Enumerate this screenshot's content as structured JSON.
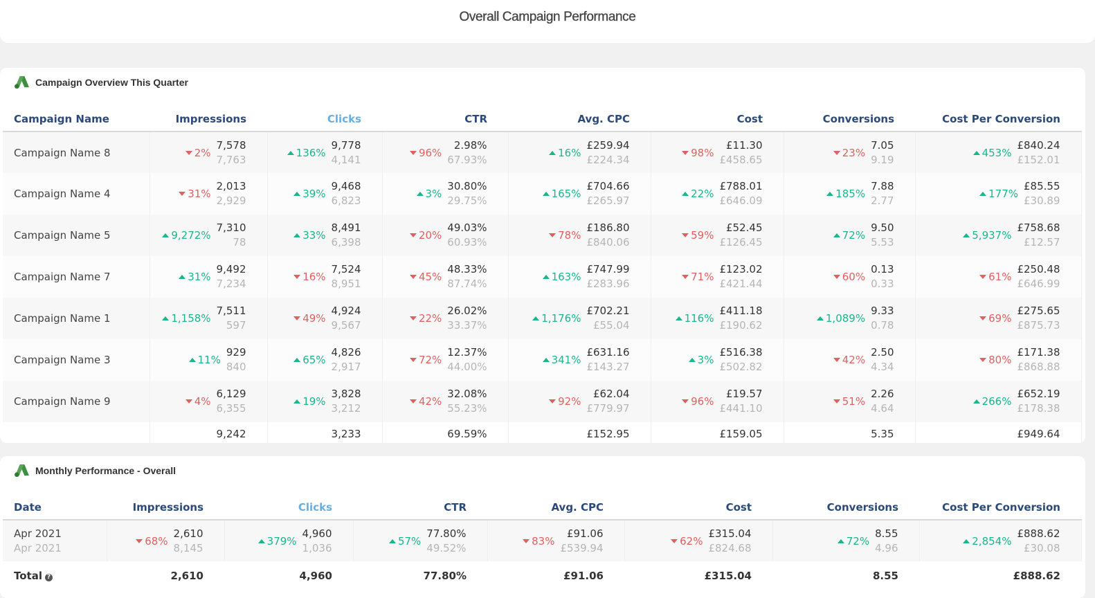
{
  "page_title": "Overall Campaign Performance",
  "card1": {
    "title": "Campaign Overview This Quarter",
    "columns": [
      "Campaign Name",
      "Impressions",
      "Clicks",
      "CTR",
      "Avg. CPC",
      "Cost",
      "Conversions",
      "Cost Per Conversion"
    ],
    "rows": [
      {
        "name": "Campaign Name 8",
        "cells": [
          {
            "d": "2%",
            "dir": "down",
            "cur": "7,578",
            "prev": "7,763"
          },
          {
            "d": "136%",
            "dir": "up",
            "cur": "9,778",
            "prev": "4,141"
          },
          {
            "d": "96%",
            "dir": "down",
            "cur": "2.98%",
            "prev": "67.93%"
          },
          {
            "d": "16%",
            "dir": "up",
            "cur": "£259.94",
            "prev": "£224.34"
          },
          {
            "d": "98%",
            "dir": "down",
            "cur": "£11.30",
            "prev": "£458.65"
          },
          {
            "d": "23%",
            "dir": "down",
            "cur": "7.05",
            "prev": "9.19"
          },
          {
            "d": "453%",
            "dir": "up",
            "cur": "£840.24",
            "prev": "£152.01"
          }
        ]
      },
      {
        "name": "Campaign Name 4",
        "cells": [
          {
            "d": "31%",
            "dir": "down",
            "cur": "2,013",
            "prev": "2,929"
          },
          {
            "d": "39%",
            "dir": "up",
            "cur": "9,468",
            "prev": "6,823"
          },
          {
            "d": "3%",
            "dir": "up",
            "cur": "30.80%",
            "prev": "29.75%"
          },
          {
            "d": "165%",
            "dir": "up",
            "cur": "£704.66",
            "prev": "£265.97"
          },
          {
            "d": "22%",
            "dir": "up",
            "cur": "£788.01",
            "prev": "£646.09"
          },
          {
            "d": "185%",
            "dir": "up",
            "cur": "7.88",
            "prev": "2.77"
          },
          {
            "d": "177%",
            "dir": "up",
            "cur": "£85.55",
            "prev": "£30.89"
          }
        ]
      },
      {
        "name": "Campaign Name 5",
        "cells": [
          {
            "d": "9,272%",
            "dir": "up",
            "cur": "7,310",
            "prev": "78"
          },
          {
            "d": "33%",
            "dir": "up",
            "cur": "8,491",
            "prev": "6,398"
          },
          {
            "d": "20%",
            "dir": "down",
            "cur": "49.03%",
            "prev": "60.93%"
          },
          {
            "d": "78%",
            "dir": "down",
            "cur": "£186.80",
            "prev": "£840.06"
          },
          {
            "d": "59%",
            "dir": "down",
            "cur": "£52.45",
            "prev": "£126.45"
          },
          {
            "d": "72%",
            "dir": "up",
            "cur": "9.50",
            "prev": "5.53"
          },
          {
            "d": "5,937%",
            "dir": "up",
            "cur": "£758.68",
            "prev": "£12.57"
          }
        ]
      },
      {
        "name": "Campaign Name 7",
        "cells": [
          {
            "d": "31%",
            "dir": "up",
            "cur": "9,492",
            "prev": "7,234"
          },
          {
            "d": "16%",
            "dir": "down",
            "cur": "7,524",
            "prev": "8,951"
          },
          {
            "d": "45%",
            "dir": "down",
            "cur": "48.33%",
            "prev": "87.74%"
          },
          {
            "d": "163%",
            "dir": "up",
            "cur": "£747.99",
            "prev": "£283.96"
          },
          {
            "d": "71%",
            "dir": "down",
            "cur": "£123.02",
            "prev": "£421.44"
          },
          {
            "d": "60%",
            "dir": "down",
            "cur": "0.13",
            "prev": "0.33"
          },
          {
            "d": "61%",
            "dir": "down",
            "cur": "£250.48",
            "prev": "£646.99"
          }
        ]
      },
      {
        "name": "Campaign Name 1",
        "cells": [
          {
            "d": "1,158%",
            "dir": "up",
            "cur": "7,511",
            "prev": "597"
          },
          {
            "d": "49%",
            "dir": "down",
            "cur": "4,924",
            "prev": "9,567"
          },
          {
            "d": "22%",
            "dir": "down",
            "cur": "26.02%",
            "prev": "33.37%"
          },
          {
            "d": "1,176%",
            "dir": "up",
            "cur": "£702.21",
            "prev": "£55.04"
          },
          {
            "d": "116%",
            "dir": "up",
            "cur": "£411.18",
            "prev": "£190.62"
          },
          {
            "d": "1,089%",
            "dir": "up",
            "cur": "9.33",
            "prev": "0.78"
          },
          {
            "d": "69%",
            "dir": "down",
            "cur": "£275.65",
            "prev": "£875.73"
          }
        ]
      },
      {
        "name": "Campaign Name 3",
        "cells": [
          {
            "d": "11%",
            "dir": "up",
            "cur": "929",
            "prev": "840"
          },
          {
            "d": "65%",
            "dir": "up",
            "cur": "4,826",
            "prev": "2,917"
          },
          {
            "d": "72%",
            "dir": "down",
            "cur": "12.37%",
            "prev": "44.00%"
          },
          {
            "d": "341%",
            "dir": "up",
            "cur": "£631.16",
            "prev": "£143.27"
          },
          {
            "d": "3%",
            "dir": "up",
            "cur": "£516.38",
            "prev": "£502.82"
          },
          {
            "d": "42%",
            "dir": "down",
            "cur": "2.50",
            "prev": "4.34"
          },
          {
            "d": "80%",
            "dir": "down",
            "cur": "£171.38",
            "prev": "£868.88"
          }
        ]
      },
      {
        "name": "Campaign Name 9",
        "cells": [
          {
            "d": "4%",
            "dir": "down",
            "cur": "6,129",
            "prev": "6,355"
          },
          {
            "d": "19%",
            "dir": "up",
            "cur": "3,828",
            "prev": "3,212"
          },
          {
            "d": "42%",
            "dir": "down",
            "cur": "32.08%",
            "prev": "55.23%"
          },
          {
            "d": "92%",
            "dir": "down",
            "cur": "£62.04",
            "prev": "£779.97"
          },
          {
            "d": "96%",
            "dir": "down",
            "cur": "£19.57",
            "prev": "£441.10"
          },
          {
            "d": "51%",
            "dir": "down",
            "cur": "2.26",
            "prev": "4.64"
          },
          {
            "d": "266%",
            "dir": "up",
            "cur": "£652.19",
            "prev": "£178.38"
          }
        ]
      }
    ],
    "partial_row": [
      "9,242",
      "3,233",
      "69.59%",
      "£152.95",
      "£159.05",
      "5.35",
      "£949.64"
    ]
  },
  "card2": {
    "title": "Monthly Performance - Overall",
    "columns": [
      "Date",
      "Impressions",
      "Clicks",
      "CTR",
      "Avg. CPC",
      "Cost",
      "Conversions",
      "Cost Per Conversion"
    ],
    "row": {
      "name": "Apr 2021",
      "name_prev": "Apr 2021",
      "cells": [
        {
          "d": "68%",
          "dir": "down",
          "cur": "2,610",
          "prev": "8,145"
        },
        {
          "d": "379%",
          "dir": "up",
          "cur": "4,960",
          "prev": "1,036"
        },
        {
          "d": "57%",
          "dir": "up",
          "cur": "77.80%",
          "prev": "49.52%"
        },
        {
          "d": "83%",
          "dir": "down",
          "cur": "£91.06",
          "prev": "£539.94"
        },
        {
          "d": "62%",
          "dir": "down",
          "cur": "£315.04",
          "prev": "£824.68"
        },
        {
          "d": "72%",
          "dir": "up",
          "cur": "8.55",
          "prev": "4.96"
        },
        {
          "d": "2,854%",
          "dir": "up",
          "cur": "£888.62",
          "prev": "£30.08"
        }
      ]
    },
    "total": {
      "label": "Total",
      "values": [
        "2,610",
        "4,960",
        "77.80%",
        "£91.06",
        "£315.04",
        "8.55",
        "£888.62"
      ]
    }
  }
}
